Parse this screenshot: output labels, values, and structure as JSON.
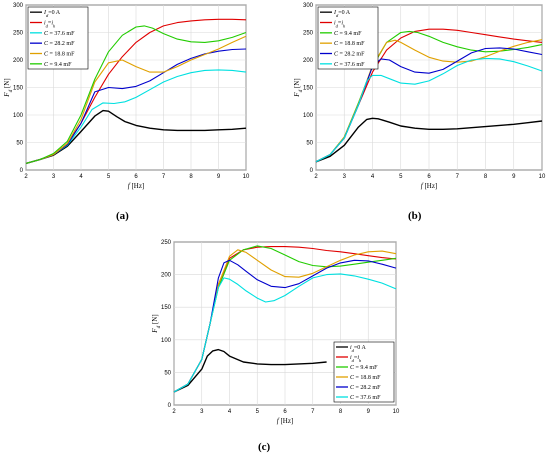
{
  "panels": [
    {
      "caption": "(a)"
    },
    {
      "caption": "(b)"
    },
    {
      "caption": "(c)"
    }
  ],
  "chart_data": [
    {
      "type": "line",
      "panel": "(a)",
      "xlabel": "f [Hz]",
      "ylabel": "Fd [N]",
      "xlim": [
        2,
        10
      ],
      "ylim": [
        0,
        300
      ],
      "xticks": [
        2,
        3,
        4,
        5,
        6,
        7,
        8,
        9,
        10
      ],
      "yticks": [
        0,
        50,
        100,
        150,
        200,
        250,
        300
      ],
      "grid": true,
      "legend_position": "top-left",
      "series": [
        {
          "name": "Id=0 A",
          "color": "#000000",
          "x": [
            2,
            2.5,
            3,
            3.5,
            4,
            4.5,
            4.8,
            5,
            5.3,
            5.6,
            6,
            6.5,
            7,
            7.5,
            8,
            8.5,
            9,
            9.5,
            10
          ],
          "y": [
            12,
            19,
            27,
            43,
            70,
            98,
            108,
            107,
            97,
            88,
            81,
            76,
            73,
            72,
            72,
            72,
            73,
            74,
            76
          ]
        },
        {
          "name": "id=ih",
          "color": "#e00000",
          "x": [
            2,
            2.5,
            3,
            3.5,
            4,
            4.5,
            5,
            5.5,
            6,
            6.5,
            7,
            7.5,
            8,
            8.5,
            9,
            9.5,
            10
          ],
          "y": [
            12,
            19,
            28,
            48,
            85,
            132,
            174,
            206,
            232,
            250,
            262,
            268,
            271,
            273,
            274,
            274,
            273
          ]
        },
        {
          "name": "C = 37.6 mF",
          "color": "#00e0e0",
          "x": [
            2,
            2.5,
            3,
            3.5,
            4,
            4.4,
            4.8,
            5.2,
            5.6,
            6,
            6.5,
            7,
            7.5,
            8,
            8.5,
            9,
            9.5,
            10
          ],
          "y": [
            12,
            19,
            28,
            45,
            78,
            110,
            122,
            121,
            124,
            132,
            146,
            160,
            170,
            177,
            181,
            182,
            181,
            178
          ]
        },
        {
          "name": "C = 28.2 mF",
          "color": "#0000cc",
          "x": [
            2,
            2.5,
            3,
            3.5,
            4,
            4.5,
            5,
            5.5,
            6,
            6.5,
            7,
            7.5,
            8,
            8.5,
            9,
            9.5,
            10
          ],
          "y": [
            12,
            19,
            28,
            46,
            85,
            142,
            150,
            148,
            152,
            162,
            177,
            192,
            203,
            211,
            216,
            219,
            220
          ]
        },
        {
          "name": "C = 18.8 mF",
          "color": "#e0a000",
          "x": [
            2,
            2.5,
            3,
            3.5,
            4,
            4.5,
            5,
            5.5,
            6,
            6.5,
            7,
            7.5,
            8,
            8.5,
            9,
            9.5,
            10
          ],
          "y": [
            12,
            19,
            28,
            48,
            92,
            160,
            195,
            200,
            188,
            178,
            178,
            188,
            200,
            210,
            220,
            232,
            243
          ]
        },
        {
          "name": "C = 9.4 mF",
          "color": "#22cc00",
          "x": [
            2,
            2.5,
            3,
            3.5,
            4,
            4.5,
            5,
            5.5,
            6,
            6.3,
            6.6,
            7,
            7.5,
            8,
            8.5,
            9,
            9.5,
            10
          ],
          "y": [
            12,
            19,
            30,
            52,
            100,
            165,
            215,
            245,
            260,
            262,
            258,
            248,
            238,
            233,
            232,
            235,
            241,
            250
          ]
        }
      ]
    },
    {
      "type": "line",
      "panel": "(b)",
      "xlabel": "f [Hz]",
      "ylabel": "Fd [N]",
      "xlim": [
        2,
        10
      ],
      "ylim": [
        0,
        300
      ],
      "xticks": [
        2,
        3,
        4,
        5,
        6,
        7,
        8,
        9,
        10
      ],
      "yticks": [
        0,
        50,
        100,
        150,
        200,
        250,
        300
      ],
      "grid": true,
      "legend_position": "top-left",
      "series": [
        {
          "name": "Id=0 A",
          "color": "#000000",
          "x": [
            2,
            2.5,
            3,
            3.5,
            3.8,
            4,
            4.2,
            4.6,
            5,
            5.5,
            6,
            6.5,
            7,
            7.5,
            8,
            8.5,
            9,
            9.5,
            10
          ],
          "y": [
            15,
            25,
            45,
            78,
            92,
            94,
            93,
            87,
            80,
            76,
            74,
            74,
            75,
            77,
            79,
            81,
            83,
            86,
            89
          ]
        },
        {
          "name": "id=ih",
          "color": "#e00000",
          "x": [
            2,
            2.5,
            3,
            3.5,
            4,
            4.5,
            5,
            5.5,
            6,
            6.5,
            7,
            7.5,
            8,
            8.5,
            9,
            9.5,
            10
          ],
          "y": [
            15,
            28,
            58,
            118,
            178,
            218,
            240,
            252,
            256,
            256,
            254,
            250,
            246,
            242,
            238,
            235,
            232
          ]
        },
        {
          "name": "C = 9.4 mF",
          "color": "#22cc00",
          "x": [
            2,
            2.5,
            3,
            3.5,
            4,
            4.5,
            5,
            5.3,
            5.6,
            6,
            6.5,
            7,
            7.5,
            8,
            8.5,
            9,
            9.5,
            10
          ],
          "y": [
            15,
            28,
            60,
            122,
            188,
            232,
            250,
            252,
            250,
            243,
            232,
            224,
            218,
            215,
            216,
            219,
            223,
            228
          ]
        },
        {
          "name": "C = 18.8 mF",
          "color": "#e0a000",
          "x": [
            2,
            2.5,
            3,
            3.5,
            4,
            4.5,
            4.8,
            5,
            5.5,
            6,
            6.5,
            7,
            7.5,
            8,
            8.5,
            9,
            9.5,
            10
          ],
          "y": [
            15,
            28,
            60,
            120,
            190,
            232,
            236,
            232,
            218,
            205,
            198,
            196,
            198,
            206,
            216,
            225,
            232,
            237
          ]
        },
        {
          "name": "C = 28.2 mF",
          "color": "#0000cc",
          "x": [
            2,
            2.5,
            3,
            3.5,
            4,
            4.3,
            4.6,
            5,
            5.5,
            6,
            6.5,
            7,
            7.5,
            8,
            8.5,
            9,
            9.5,
            10
          ],
          "y": [
            15,
            28,
            58,
            118,
            188,
            202,
            200,
            188,
            178,
            176,
            183,
            198,
            213,
            221,
            222,
            220,
            215,
            210
          ]
        },
        {
          "name": "C = 37.6 mF",
          "color": "#00e0e0",
          "x": [
            2,
            2.5,
            3,
            3.5,
            3.8,
            4,
            4.3,
            4.7,
            5,
            5.5,
            6,
            6.5,
            7,
            7.5,
            8,
            8.5,
            9,
            9.5,
            10
          ],
          "y": [
            15,
            28,
            58,
            118,
            162,
            172,
            172,
            164,
            158,
            156,
            162,
            175,
            190,
            200,
            203,
            202,
            197,
            189,
            180
          ]
        }
      ]
    },
    {
      "type": "line",
      "panel": "(c)",
      "xlabel": "f [Hz]",
      "ylabel": "Fd [N]",
      "xlim": [
        2,
        10
      ],
      "ylim": [
        0,
        250
      ],
      "xticks": [
        2,
        3,
        4,
        5,
        6,
        7,
        8,
        9,
        10
      ],
      "yticks": [
        0,
        50,
        100,
        150,
        200,
        250
      ],
      "grid": true,
      "legend_position": "bottom-right",
      "series": [
        {
          "name": "id=0 A",
          "color": "#000000",
          "x": [
            2,
            2.5,
            3,
            3.2,
            3.4,
            3.6,
            3.8,
            4,
            4.5,
            5,
            5.5,
            6,
            6.5,
            7,
            7.5
          ],
          "y": [
            20,
            30,
            55,
            75,
            83,
            85,
            82,
            75,
            66,
            63,
            62,
            62,
            63,
            64,
            66
          ]
        },
        {
          "name": "id=ih",
          "color": "#e00000",
          "x": [
            2,
            2.5,
            3,
            3.3,
            3.6,
            4,
            4.5,
            5,
            5.5,
            6,
            6.5,
            7,
            7.5,
            8,
            8.5,
            9,
            9.5,
            10
          ],
          "y": [
            20,
            32,
            70,
            125,
            185,
            225,
            238,
            242,
            243,
            243,
            242,
            240,
            237,
            235,
            232,
            229,
            226,
            224
          ]
        },
        {
          "name": "C = 9.4 mF",
          "color": "#22cc00",
          "x": [
            2,
            2.5,
            3,
            3.3,
            3.6,
            4,
            4.5,
            5,
            5.5,
            6,
            6.5,
            7,
            7.5,
            8,
            8.5,
            9,
            9.5,
            10
          ],
          "y": [
            20,
            32,
            70,
            125,
            180,
            222,
            238,
            244,
            240,
            230,
            220,
            214,
            212,
            213,
            216,
            219,
            222,
            225
          ]
        },
        {
          "name": "C = 18.8 mF",
          "color": "#e0a000",
          "x": [
            2,
            2.5,
            3,
            3.3,
            3.6,
            4,
            4.3,
            4.6,
            5,
            5.5,
            6,
            6.5,
            7,
            7.5,
            8,
            8.5,
            9,
            9.5,
            10
          ],
          "y": [
            20,
            32,
            70,
            125,
            185,
            228,
            238,
            234,
            222,
            207,
            197,
            196,
            202,
            212,
            222,
            230,
            235,
            236,
            232
          ]
        },
        {
          "name": "C = 28.2 mF",
          "color": "#0000cc",
          "x": [
            2,
            2.5,
            3,
            3.3,
            3.6,
            3.8,
            4,
            4.3,
            4.6,
            5,
            5.5,
            6,
            6.5,
            7,
            7.5,
            8,
            8.5,
            9,
            9.5,
            10
          ],
          "y": [
            20,
            32,
            70,
            125,
            195,
            218,
            222,
            215,
            205,
            192,
            182,
            180,
            186,
            198,
            210,
            218,
            222,
            221,
            216,
            210
          ]
        },
        {
          "name": "C = 37.6 mF",
          "color": "#00e0e0",
          "x": [
            2,
            2.5,
            3,
            3.3,
            3.6,
            3.8,
            4,
            4.3,
            4.6,
            5,
            5.3,
            5.6,
            6,
            6.5,
            7,
            7.5,
            8,
            8.5,
            9,
            9.5,
            10
          ],
          "y": [
            20,
            32,
            70,
            125,
            180,
            195,
            193,
            185,
            175,
            164,
            158,
            160,
            168,
            182,
            195,
            200,
            201,
            198,
            193,
            187,
            178
          ]
        }
      ]
    }
  ]
}
